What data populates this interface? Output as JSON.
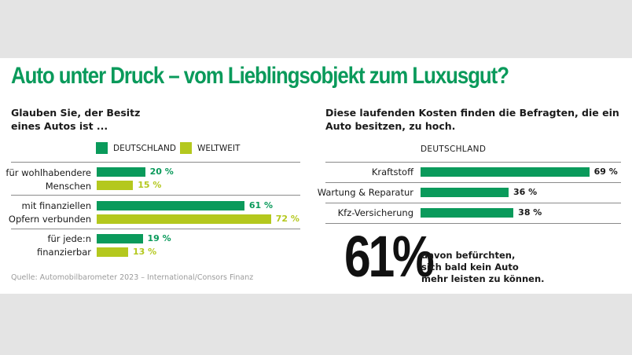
{
  "title": "Auto unter Druck – vom Lieblingsobjekt zum Luxusgut?",
  "colors": {
    "green": "#0a9a5b",
    "lime": "#b4c81e",
    "text": "#1a1a1a",
    "rule": "#8a8a8a",
    "source": "#9b9b9b"
  },
  "source": "Quelle: Automobilbarometer 2023 – International/Consors Finanz",
  "chart_data": [
    {
      "type": "bar",
      "orientation": "horizontal",
      "subtitle_lines": [
        "Glauben Sie, der Besitz",
        "eines Autos ist ..."
      ],
      "categories": [
        {
          "lines": [
            "für wohlhabendere",
            "Menschen"
          ]
        },
        {
          "lines": [
            "mit finanziellen",
            "Opfern verbunden"
          ]
        },
        {
          "lines": [
            "für jede:n",
            "finanzierbar"
          ]
        }
      ],
      "series": [
        {
          "name": "DEUTSCHLAND",
          "color": "#0a9a5b",
          "values": [
            20,
            61,
            19
          ],
          "labels": [
            "20 %",
            "61 %",
            "19 %"
          ]
        },
        {
          "name": "WELTWEIT",
          "color": "#b4c81e",
          "values": [
            15,
            72,
            13
          ],
          "labels": [
            "15 %",
            "72 %",
            "13 %"
          ]
        }
      ],
      "value_unit": "%",
      "legend_position": "top",
      "xlim": [
        0,
        100
      ]
    },
    {
      "type": "bar",
      "orientation": "horizontal",
      "subtitle_lines": [
        "Diese laufenden Kosten finden die Befragten, die ein",
        "Auto besitzen, zu hoch."
      ],
      "series_header": "DEUTSCHLAND",
      "categories": [
        "Kraftstoff",
        "Wartung & Reparatur",
        "Kfz-Versicherung"
      ],
      "series": [
        {
          "name": "DEUTSCHLAND",
          "color": "#0a9a5b",
          "values": [
            69,
            36,
            38
          ],
          "labels": [
            "69 %",
            "36 %",
            "38 %"
          ]
        }
      ],
      "value_unit": "%",
      "xlim": [
        0,
        100
      ]
    }
  ],
  "highlight": {
    "number": "61%",
    "text_lines": [
      "davon befürchten,",
      "sich bald kein Auto",
      "mehr leisten zu können."
    ]
  }
}
